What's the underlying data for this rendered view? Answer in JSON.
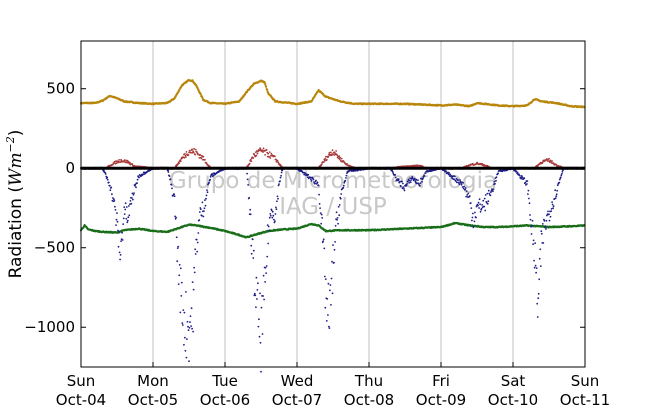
{
  "chart_data": {
    "type": "scatter",
    "title": "",
    "xlabel": "",
    "ylabel": "Radiation (",
    "ylabel_units": "Wm",
    "ylabel_exp": "−2",
    "ylabel_close": ")",
    "ylim": [
      -1250,
      800
    ],
    "yticks": [
      500,
      0,
      -500,
      -1000
    ],
    "ytick_labels": [
      "500",
      "0",
      "−500",
      "−1000"
    ],
    "xlim": [
      0,
      7
    ],
    "xticks": [
      {
        "day": "Sun",
        "date": "Oct-04"
      },
      {
        "day": "Mon",
        "date": "Oct-05"
      },
      {
        "day": "Tue",
        "date": "Oct-06"
      },
      {
        "day": "Wed",
        "date": "Oct-07"
      },
      {
        "day": "Thu",
        "date": "Oct-08"
      },
      {
        "day": "Fri",
        "date": "Oct-09"
      },
      {
        "day": "Sat",
        "date": "Oct-10"
      },
      {
        "day": "Sun",
        "date": "Oct-11"
      }
    ],
    "grid": "vertical",
    "watermark": [
      "Grupo de Micrometeorologia",
      "IAG / USP"
    ],
    "colors": {
      "longwave_down": "#b8860b",
      "longwave_up": "#1a6e1a",
      "shortwave_up": "#a83a3a",
      "shortwave_down": "#1f1f8a",
      "zero_line": "#000000",
      "grid": "#b0b0b0"
    },
    "series": [
      {
        "key": "longwave_down",
        "x": [
          0.0,
          0.2,
          0.3,
          0.4,
          0.5,
          0.6,
          0.7,
          0.8,
          1.0,
          1.2,
          1.3,
          1.4,
          1.5,
          1.55,
          1.6,
          1.7,
          1.8,
          2.0,
          2.2,
          2.3,
          2.4,
          2.5,
          2.55,
          2.6,
          2.7,
          2.8,
          3.0,
          3.2,
          3.3,
          3.4,
          3.6,
          3.8,
          4.0,
          4.5,
          5.0,
          5.2,
          5.4,
          5.5,
          5.6,
          5.8,
          6.0,
          6.2,
          6.3,
          6.4,
          6.6,
          6.8,
          7.0
        ],
        "y": [
          410,
          410,
          425,
          455,
          440,
          420,
          415,
          410,
          405,
          410,
          440,
          520,
          555,
          550,
          520,
          430,
          410,
          405,
          420,
          480,
          530,
          550,
          540,
          470,
          420,
          415,
          405,
          420,
          490,
          450,
          420,
          405,
          405,
          405,
          395,
          400,
          390,
          410,
          405,
          395,
          390,
          395,
          435,
          420,
          410,
          390,
          385
        ]
      },
      {
        "key": "longwave_up",
        "x": [
          0.0,
          0.05,
          0.1,
          0.2,
          0.3,
          0.5,
          0.6,
          0.8,
          1.0,
          1.2,
          1.4,
          1.5,
          1.6,
          1.8,
          2.0,
          2.2,
          2.3,
          2.4,
          2.6,
          2.8,
          3.0,
          3.2,
          3.3,
          3.4,
          3.6,
          4.0,
          4.5,
          5.0,
          5.2,
          5.4,
          5.6,
          5.8,
          6.0,
          6.2,
          6.5,
          6.8,
          7.0
        ],
        "y": [
          -390,
          -360,
          -385,
          -395,
          -400,
          -405,
          -390,
          -380,
          -395,
          -400,
          -370,
          -355,
          -360,
          -375,
          -395,
          -420,
          -435,
          -420,
          -395,
          -385,
          -380,
          -350,
          -360,
          -395,
          -390,
          -390,
          -380,
          -370,
          -345,
          -360,
          -370,
          -370,
          -365,
          -360,
          -370,
          -365,
          -360
        ]
      },
      {
        "key": "shortwave_up",
        "x": [
          0.0,
          0.35,
          0.45,
          0.55,
          0.65,
          0.75,
          1.0,
          1.3,
          1.4,
          1.5,
          1.6,
          1.7,
          1.8,
          2.0,
          2.3,
          2.4,
          2.5,
          2.6,
          2.7,
          2.8,
          3.0,
          3.3,
          3.4,
          3.5,
          3.6,
          3.7,
          3.8,
          4.0,
          4.3,
          4.5,
          4.7,
          4.8,
          5.0,
          5.3,
          5.4,
          5.5,
          5.6,
          5.7,
          6.0,
          6.3,
          6.4,
          6.5,
          6.6,
          6.7,
          7.0
        ],
        "y": [
          0,
          0,
          30,
          50,
          40,
          10,
          0,
          0,
          60,
          110,
          100,
          60,
          0,
          0,
          0,
          80,
          110,
          90,
          60,
          0,
          0,
          0,
          60,
          110,
          60,
          20,
          0,
          0,
          0,
          10,
          15,
          0,
          0,
          0,
          20,
          30,
          20,
          0,
          0,
          0,
          40,
          50,
          20,
          0,
          0
        ]
      },
      {
        "key": "shortwave_down",
        "x": [
          0.0,
          0.3,
          0.4,
          0.45,
          0.5,
          0.55,
          0.6,
          0.65,
          0.7,
          0.8,
          1.0,
          1.2,
          1.3,
          1.35,
          1.4,
          1.45,
          1.5,
          1.55,
          1.6,
          1.65,
          1.7,
          1.8,
          2.0,
          2.3,
          2.35,
          2.4,
          2.45,
          2.5,
          2.55,
          2.6,
          2.65,
          2.7,
          2.75,
          2.8,
          3.0,
          3.3,
          3.35,
          3.4,
          3.45,
          3.5,
          3.55,
          3.6,
          3.7,
          4.0,
          4.3,
          4.4,
          4.5,
          4.6,
          4.7,
          4.8,
          5.0,
          5.3,
          5.4,
          5.45,
          5.5,
          5.6,
          5.7,
          5.8,
          6.0,
          6.2,
          6.25,
          6.3,
          6.35,
          6.4,
          6.45,
          6.5,
          6.6,
          6.7,
          7.0
        ],
        "y": [
          0,
          0,
          -100,
          -200,
          -350,
          -550,
          -250,
          -320,
          -200,
          -50,
          0,
          0,
          -200,
          -600,
          -850,
          -980,
          -1000,
          -900,
          -500,
          -300,
          -250,
          -50,
          0,
          0,
          -300,
          -650,
          -900,
          -1050,
          -800,
          -400,
          -250,
          -300,
          -100,
          0,
          0,
          -100,
          -400,
          -800,
          -980,
          -600,
          -350,
          -200,
          -20,
          0,
          0,
          -80,
          -120,
          -60,
          -100,
          -20,
          0,
          -100,
          -200,
          -320,
          -250,
          -230,
          -150,
          -20,
          0,
          -100,
          -330,
          -550,
          -870,
          -450,
          -350,
          -280,
          -150,
          0,
          0
        ]
      }
    ]
  }
}
